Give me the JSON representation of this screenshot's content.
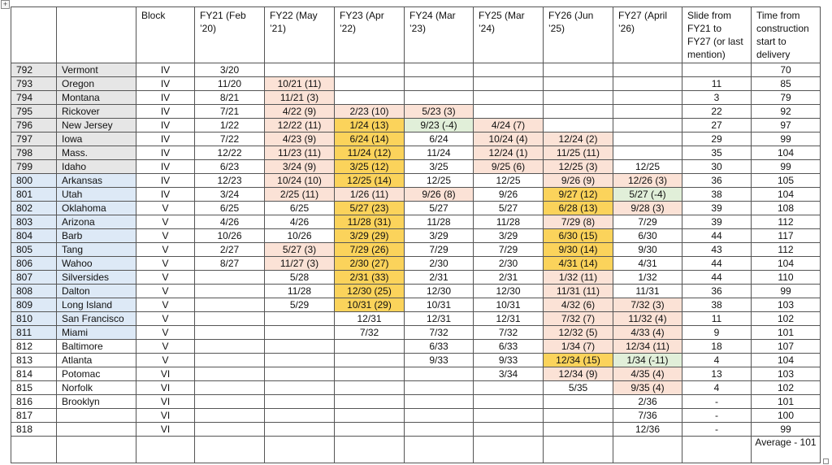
{
  "headers": [
    "",
    "",
    "Block",
    "FY21 (Feb ’20)",
    "FY22 (May ’21)",
    "FY23 (Apr ’22)",
    "FY24 (Mar ’23)",
    "FY25 (Mar ’24)",
    "FY26 (Jun ’25)",
    "FY27 (April ’26)",
    "Slide from FY21 to FY27 (or last mention)",
    "Time from construction start to delivery"
  ],
  "colors": {
    "grey": "#e6e6e6",
    "blue": "#dde9f6",
    "pink": "#fbe2d6",
    "gold": "#fbd35b",
    "green": "#e1efd9",
    "border": "#555555"
  },
  "rows": [
    {
      "hull": "792",
      "name": "Vermont",
      "block": "IV",
      "fy21": "3/20",
      "fy22": "",
      "fy23": "",
      "fy24": "",
      "fy25": "",
      "fy26": "",
      "fy27": "",
      "slide": "",
      "time": "70"
    },
    {
      "hull": "793",
      "name": "Oregon",
      "block": "IV",
      "fy21": "11/20",
      "fy22": "10/21 (11)",
      "fy23": "",
      "fy24": "",
      "fy25": "",
      "fy26": "",
      "fy27": "",
      "slide": "11",
      "time": "85"
    },
    {
      "hull": "794",
      "name": "Montana",
      "block": "IV",
      "fy21": "8/21",
      "fy22": "11/21 (3)",
      "fy23": "",
      "fy24": "",
      "fy25": "",
      "fy26": "",
      "fy27": "",
      "slide": "3",
      "time": "79"
    },
    {
      "hull": "795",
      "name": "Rickover",
      "block": "IV",
      "fy21": "7/21",
      "fy22": "4/22 (9)",
      "fy23": "2/23 (10)",
      "fy24": "5/23 (3)",
      "fy25": "",
      "fy26": "",
      "fy27": "",
      "slide": "22",
      "time": "92"
    },
    {
      "hull": "796",
      "name": "New Jersey",
      "block": "IV",
      "fy21": "1/22",
      "fy22": "12/22 (11)",
      "fy23": "1/24 (13)",
      "fy24": "9/23 (-4)",
      "fy25": "4/24 (7)",
      "fy26": "",
      "fy27": "",
      "slide": "27",
      "time": "97"
    },
    {
      "hull": "797",
      "name": "Iowa",
      "block": "IV",
      "fy21": "7/22",
      "fy22": "4/23 (9)",
      "fy23": "6/24 (14)",
      "fy24": "6/24",
      "fy25": "10/24 (4)",
      "fy26": "12/24 (2)",
      "fy27": "",
      "slide": "29",
      "time": "99"
    },
    {
      "hull": "798",
      "name": "Mass.",
      "block": "IV",
      "fy21": "12/22",
      "fy22": "11/23 (11)",
      "fy23": "11/24 (12)",
      "fy24": "11/24",
      "fy25": "12/24 (1)",
      "fy26": "11/25 (11)",
      "fy27": "",
      "slide": "35",
      "time": "104"
    },
    {
      "hull": "799",
      "name": "Idaho",
      "block": "IV",
      "fy21": "6/23",
      "fy22": "3/24 (9)",
      "fy23": "3/25 (12)",
      "fy24": "3/25",
      "fy25": "9/25 (6)",
      "fy26": "12/25 (3)",
      "fy27": "12/25",
      "slide": "30",
      "time": "99"
    },
    {
      "hull": "800",
      "name": "Arkansas",
      "block": "IV",
      "fy21": "12/23",
      "fy22": "10/24 (10)",
      "fy23": "12/25 (14)",
      "fy24": "12/25",
      "fy25": "12/25",
      "fy26": "9/26 (9)",
      "fy27": "12/26 (3)",
      "slide": "36",
      "time": "105"
    },
    {
      "hull": "801",
      "name": "Utah",
      "block": "IV",
      "fy21": "3/24",
      "fy22": "2/25 (11)",
      "fy23": "1/26 (11)",
      "fy24": "9/26 (8)",
      "fy25": "9/26",
      "fy26": "9/27 (12)",
      "fy27": "5/27 (-4)",
      "slide": "38",
      "time": "104"
    },
    {
      "hull": "802",
      "name": "Oklahoma",
      "block": "V",
      "fy21": "6/25",
      "fy22": "6/25",
      "fy23": "5/27 (23)",
      "fy24": "5/27",
      "fy25": "5/27",
      "fy26": "6/28 (13)",
      "fy27": "9/28 (3)",
      "slide": "39",
      "time": "108"
    },
    {
      "hull": "803",
      "name": "Arizona",
      "block": "V",
      "fy21": "4/26",
      "fy22": "4/26",
      "fy23": "11/28 (31)",
      "fy24": "11/28",
      "fy25": "11/28",
      "fy26": "7/29 (8)",
      "fy27": "7/29",
      "slide": "39",
      "time": "112"
    },
    {
      "hull": "804",
      "name": "Barb",
      "block": "V",
      "fy21": "10/26",
      "fy22": "10/26",
      "fy23": "3/29 (29)",
      "fy24": "3/29",
      "fy25": "3/29",
      "fy26": "6/30 (15)",
      "fy27": "6/30",
      "slide": "44",
      "time": "117"
    },
    {
      "hull": "805",
      "name": "Tang",
      "block": "V",
      "fy21": "2/27",
      "fy22": "5/27 (3)",
      "fy23": "7/29 (26)",
      "fy24": "7/29",
      "fy25": "7/29",
      "fy26": "9/30 (14)",
      "fy27": "9/30",
      "slide": "43",
      "time": "112"
    },
    {
      "hull": "806",
      "name": "Wahoo",
      "block": "V",
      "fy21": "8/27",
      "fy22": "11/27 (3)",
      "fy23": "2/30 (27)",
      "fy24": "2/30",
      "fy25": "2/30",
      "fy26": "4/31 (14)",
      "fy27": "4/31",
      "slide": "44",
      "time": "104"
    },
    {
      "hull": "807",
      "name": "Silversides",
      "block": "V",
      "fy21": "",
      "fy22": "5/28",
      "fy23": "2/31 (33)",
      "fy24": "2/31",
      "fy25": "2/31",
      "fy26": "1/32 (11)",
      "fy27": "1/32",
      "slide": "44",
      "time": "110"
    },
    {
      "hull": "808",
      "name": "Dalton",
      "block": "V",
      "fy21": "",
      "fy22": "11/28",
      "fy23": "12/30 (25)",
      "fy24": "12/30",
      "fy25": "12/30",
      "fy26": "11/31 (11)",
      "fy27": "11/31",
      "slide": "36",
      "time": "99"
    },
    {
      "hull": "809",
      "name": "Long Island",
      "block": "V",
      "fy21": "",
      "fy22": "5/29",
      "fy23": "10/31 (29)",
      "fy24": "10/31",
      "fy25": "10/31",
      "fy26": "4/32 (6)",
      "fy27": "7/32 (3)",
      "slide": "38",
      "time": "103"
    },
    {
      "hull": "810",
      "name": "San Francisco",
      "block": "V",
      "fy21": "",
      "fy22": "",
      "fy23": "12/31",
      "fy24": "12/31",
      "fy25": "12/31",
      "fy26": "7/32 (7)",
      "fy27": "11/32 (4)",
      "slide": "11",
      "time": "102"
    },
    {
      "hull": "811",
      "name": "Miami",
      "block": "V",
      "fy21": "",
      "fy22": "",
      "fy23": "7/32",
      "fy24": "7/32",
      "fy25": "7/32",
      "fy26": "12/32 (5)",
      "fy27": "4/33 (4)",
      "slide": "9",
      "time": "101"
    },
    {
      "hull": "812",
      "name": "Baltimore",
      "block": "V",
      "fy21": "",
      "fy22": "",
      "fy23": "",
      "fy24": "6/33",
      "fy25": "6/33",
      "fy26": "1/34 (7)",
      "fy27": "12/34 (11)",
      "slide": "18",
      "time": "107"
    },
    {
      "hull": "813",
      "name": "Atlanta",
      "block": "V",
      "fy21": "",
      "fy22": "",
      "fy23": "",
      "fy24": "9/33",
      "fy25": "9/33",
      "fy26": "12/34 (15)",
      "fy27": "1/34 (-11)",
      "slide": "4",
      "time": "104"
    },
    {
      "hull": "814",
      "name": "Potomac",
      "block": "VI",
      "fy21": "",
      "fy22": "",
      "fy23": "",
      "fy24": "",
      "fy25": "3/34",
      "fy26": "12/34 (9)",
      "fy27": "4/35 (4)",
      "slide": "13",
      "time": "103"
    },
    {
      "hull": "815",
      "name": "Norfolk",
      "block": "VI",
      "fy21": "",
      "fy22": "",
      "fy23": "",
      "fy24": "",
      "fy25": "",
      "fy26": "5/35",
      "fy27": "9/35 (4)",
      "slide": "4",
      "time": "102"
    },
    {
      "hull": "816",
      "name": "Brooklyn",
      "block": "VI",
      "fy21": "",
      "fy22": "",
      "fy23": "",
      "fy24": "",
      "fy25": "",
      "fy26": "",
      "fy27": "2/36",
      "slide": "-",
      "time": "101"
    },
    {
      "hull": "817",
      "name": "",
      "block": "VI",
      "fy21": "",
      "fy22": "",
      "fy23": "",
      "fy24": "",
      "fy25": "",
      "fy26": "",
      "fy27": "7/36",
      "slide": "-",
      "time": "100"
    },
    {
      "hull": "818",
      "name": "",
      "block": "VI",
      "fy21": "",
      "fy22": "",
      "fy23": "",
      "fy24": "",
      "fy25": "",
      "fy26": "",
      "fy27": "12/36",
      "slide": "-",
      "time": "99"
    }
  ],
  "footer": {
    "average": "Average - 101"
  },
  "icons": {
    "move_handle": "move-handle-icon",
    "resize_handle": "resize-handle-icon"
  }
}
